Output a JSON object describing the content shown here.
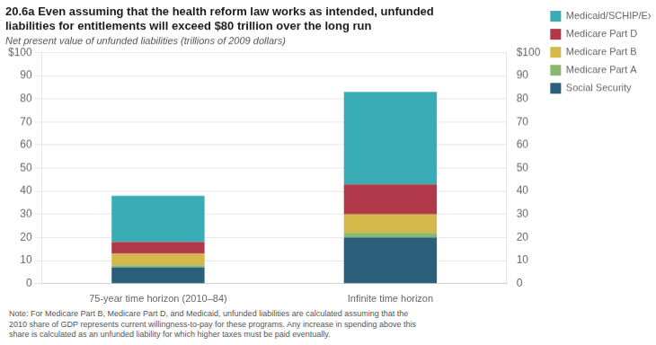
{
  "chart_data": {
    "type": "bar",
    "title": [
      "20.6a Even assuming that the health reform law works as intended, unfunded",
      "liabilities for entitlements will exceed $80 trillion over the long run"
    ],
    "subtitle": "Net present value of unfunded liabilities (trillions of 2009 dollars)",
    "note": "Note: For Medicare Part B, Medicare Part D, and Medicaid, unfunded liabilities are calculated assuming that the\n2010 share of GDP represents current willingness-to-pay for these programs. Any increase in spending above this\nshare is calculated as an unfunded liability for which higher taxes must be paid eventually.",
    "categories": [
      "75-year time horizon (2010–84)",
      "Infinite time horizon"
    ],
    "series": [
      {
        "name": "Medicaid/SCHIP/Exchange subsidies",
        "color": "#3AACB5",
        "values": [
          20,
          40
        ]
      },
      {
        "name": "Medicare Part D",
        "color": "#B03848",
        "values": [
          5,
          13
        ]
      },
      {
        "name": "Medicare Part B",
        "color": "#D4B84A",
        "values": [
          5,
          8
        ]
      },
      {
        "name": "Medicare Part A",
        "color": "#8BB870",
        "values": [
          1,
          2
        ]
      },
      {
        "name": "Social Security",
        "color": "#2B5F7A",
        "values": [
          7,
          20
        ]
      }
    ],
    "stacked": true,
    "ylim": [
      0,
      100
    ],
    "yticks": [
      0,
      10,
      20,
      30,
      40,
      50,
      60,
      70,
      80,
      90,
      {
        "value": 100,
        "label": "$100"
      }
    ],
    "y2lim": [
      0,
      100
    ],
    "y2ticks": [
      0,
      10,
      20,
      30,
      40,
      50,
      60,
      70,
      80,
      90,
      {
        "value": 100,
        "label": "$100"
      }
    ],
    "grid": true,
    "legend": "right"
  }
}
